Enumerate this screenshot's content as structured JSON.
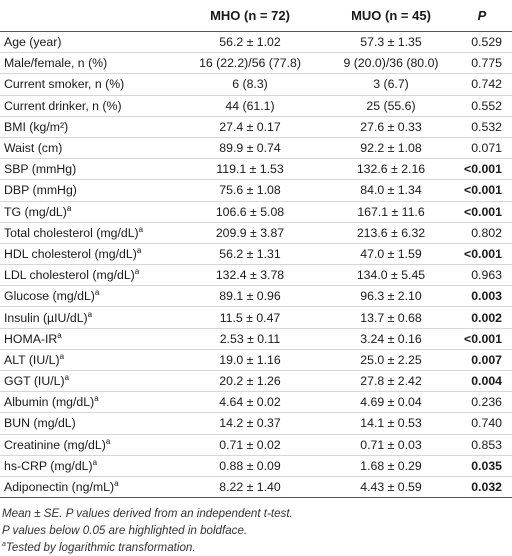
{
  "table": {
    "headers": {
      "variable": "",
      "mho_label": "MHO",
      "mho_n": "(n = 72)",
      "muo_label": "MUO",
      "muo_n": "(n = 45)",
      "p": "P"
    },
    "rows": [
      {
        "variable": "Age (year)",
        "sup": "",
        "mho": "56.2 ± 1.02",
        "muo": "57.3 ± 1.35",
        "p": "0.529",
        "bold": false
      },
      {
        "variable": "Male/female, n (%)",
        "sup": "",
        "mho": "16 (22.2)/56 (77.8)",
        "muo": "9 (20.0)/36 (80.0)",
        "p": "0.775",
        "bold": false
      },
      {
        "variable": "Current smoker, n (%)",
        "sup": "",
        "mho": "6 (8.3)",
        "muo": "3 (6.7)",
        "p": "0.742",
        "bold": false
      },
      {
        "variable": "Current drinker, n (%)",
        "sup": "",
        "mho": "44 (61.1)",
        "muo": "25 (55.6)",
        "p": "0.552",
        "bold": false
      },
      {
        "variable": "BMI (kg/m²)",
        "sup": "",
        "mho": "27.4 ± 0.17",
        "muo": "27.6 ± 0.33",
        "p": "0.532",
        "bold": false
      },
      {
        "variable": "Waist (cm)",
        "sup": "",
        "mho": "89.9 ± 0.74",
        "muo": "92.2 ± 1.08",
        "p": "0.071",
        "bold": false
      },
      {
        "variable": "SBP (mmHg)",
        "sup": "",
        "mho": "119.1 ± 1.53",
        "muo": "132.6 ± 2.16",
        "p": "<0.001",
        "bold": true
      },
      {
        "variable": "DBP (mmHg)",
        "sup": "",
        "mho": "75.6 ± 1.08",
        "muo": "84.0 ± 1.34",
        "p": "<0.001",
        "bold": true
      },
      {
        "variable": "TG (mg/dL)",
        "sup": "a",
        "mho": "106.6 ± 5.08",
        "muo": "167.1 ± 11.6",
        "p": "<0.001",
        "bold": true
      },
      {
        "variable": "Total cholesterol (mg/dL)",
        "sup": "a",
        "mho": "209.9 ± 3.87",
        "muo": "213.6 ± 6.32",
        "p": "0.802",
        "bold": false
      },
      {
        "variable": "HDL cholesterol (mg/dL)",
        "sup": "a",
        "mho": "56.2 ± 1.31",
        "muo": "47.0 ± 1.59",
        "p": "<0.001",
        "bold": true
      },
      {
        "variable": "LDL cholesterol (mg/dL)",
        "sup": "a",
        "mho": "132.4 ± 3.78",
        "muo": "134.0 ± 5.45",
        "p": "0.963",
        "bold": false
      },
      {
        "variable": "Glucose (mg/dL)",
        "sup": "a",
        "mho": "89.1 ± 0.96",
        "muo": "96.3 ± 2.10",
        "p": "0.003",
        "bold": true
      },
      {
        "variable": "Insulin (µIU/dL)",
        "sup": "a",
        "mho": "11.5 ± 0.47",
        "muo": "13.7 ± 0.68",
        "p": "0.002",
        "bold": true
      },
      {
        "variable": "HOMA-IR",
        "sup": "a",
        "mho": "2.53 ± 0.11",
        "muo": "3.24 ± 0.16",
        "p": "<0.001",
        "bold": true
      },
      {
        "variable": "ALT (IU/L)",
        "sup": "a",
        "mho": "19.0 ± 1.16",
        "muo": "25.0 ± 2.25",
        "p": "0.007",
        "bold": true
      },
      {
        "variable": "GGT (IU/L)",
        "sup": "a",
        "mho": "20.2 ± 1.26",
        "muo": "27.8 ± 2.42",
        "p": "0.004",
        "bold": true
      },
      {
        "variable": "Albumin (mg/dL)",
        "sup": "a",
        "mho": "4.64 ± 0.02",
        "muo": "4.69 ± 0.04",
        "p": "0.236",
        "bold": false
      },
      {
        "variable": "BUN (mg/dL)",
        "sup": "",
        "mho": "14.2 ± 0.37",
        "muo": "14.1 ± 0.53",
        "p": "0.740",
        "bold": false
      },
      {
        "variable": "Creatinine (mg/dL)",
        "sup": "a",
        "mho": "0.71 ± 0.02",
        "muo": "0.71 ± 0.03",
        "p": "0.853",
        "bold": false
      },
      {
        "variable": "hs-CRP (mg/dL)",
        "sup": "a",
        "mho": "0.88 ± 0.09",
        "muo": "1.68 ± 0.29",
        "p": "0.035",
        "bold": true
      },
      {
        "variable": "Adiponectin (ng/mL)",
        "sup": "a",
        "mho": "8.22 ± 1.40",
        "muo": "4.43 ± 0.59",
        "p": "0.032",
        "bold": true
      }
    ]
  },
  "footnotes": {
    "line1": "Mean ± SE. P values derived from an independent t-test.",
    "line2": "P values below 0.05 are highlighted in boldface.",
    "line3_sup": "a",
    "line3": "Tested by logarithmic transformation."
  }
}
